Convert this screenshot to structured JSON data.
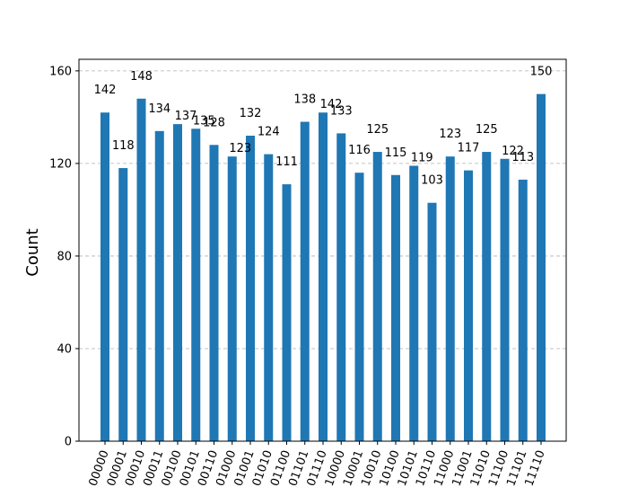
{
  "chart_data": {
    "type": "bar",
    "title": "",
    "xlabel": "",
    "ylabel": "Count",
    "ylim": [
      0,
      165
    ],
    "yticks": [
      0,
      40,
      80,
      120,
      160
    ],
    "grid": "horizontal-dashed",
    "bar_color": "#1f77b4",
    "categories": [
      "00000",
      "00001",
      "00010",
      "00011",
      "00100",
      "00101",
      "00110",
      "01000",
      "01001",
      "01010",
      "01100",
      "01101",
      "01110",
      "10000",
      "10001",
      "10010",
      "10100",
      "10101",
      "10110",
      "11000",
      "11001",
      "11010",
      "11100",
      "11101",
      "11110"
    ],
    "values": [
      142,
      118,
      148,
      134,
      137,
      135,
      128,
      123,
      132,
      124,
      111,
      138,
      142,
      133,
      116,
      125,
      115,
      119,
      103,
      123,
      117,
      125,
      122,
      113,
      150
    ]
  }
}
